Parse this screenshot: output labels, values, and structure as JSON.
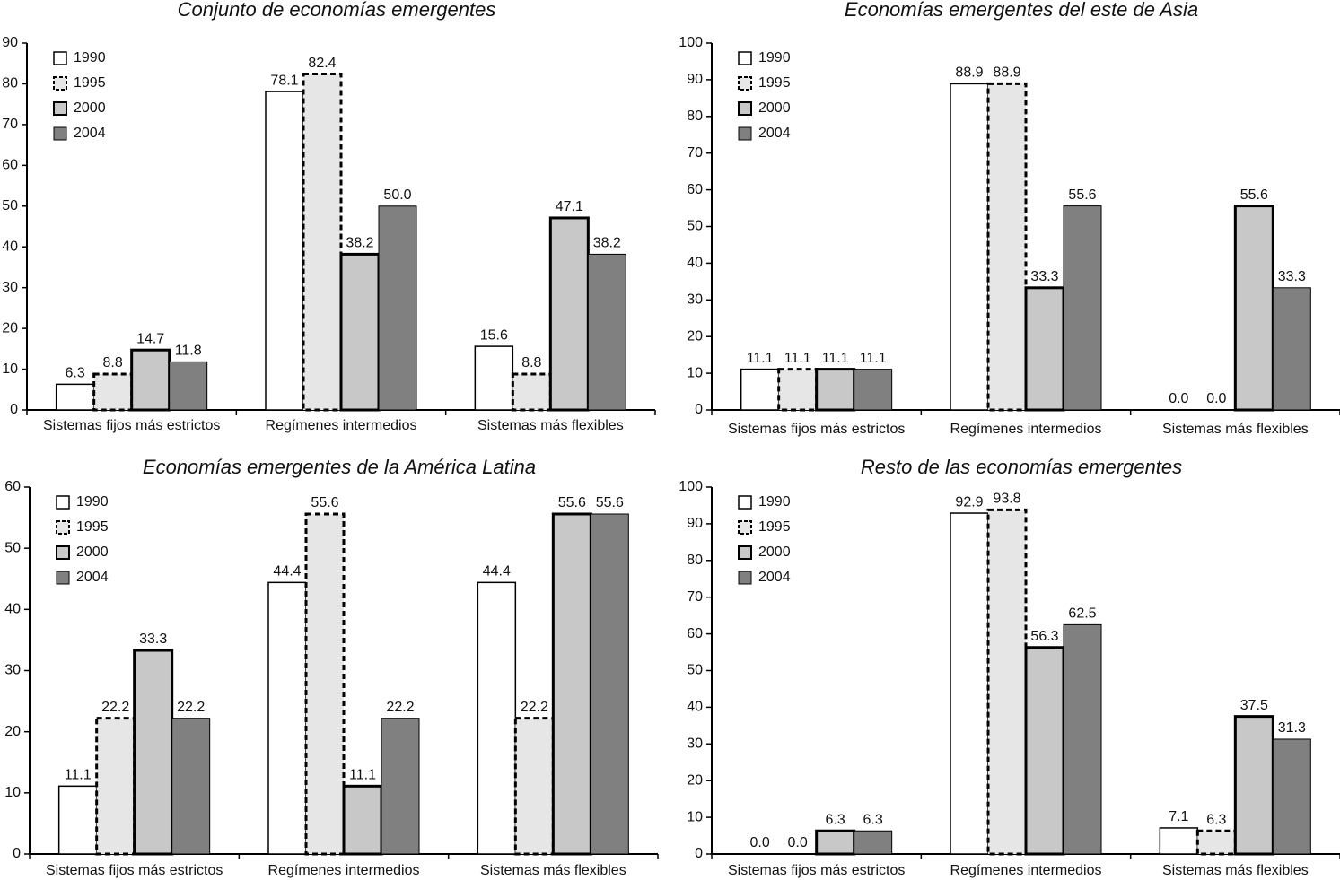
{
  "chart_data": [
    {
      "type": "bar",
      "title": "Conjunto de economías emergentes",
      "categories": [
        "Sistemas fijos más estrictos",
        "Regímenes intermedios",
        "Sistemas más flexibles"
      ],
      "series": [
        {
          "name": "1990",
          "color": "#ffffff",
          "values": [
            6.3,
            78.1,
            15.6
          ],
          "value_labels": [
            "6.3",
            "78.1",
            "15.6"
          ]
        },
        {
          "name": "1995",
          "color": "#e6e6e6",
          "values": [
            8.8,
            82.4,
            8.8
          ],
          "value_labels": [
            "8.8",
            "82.4",
            "8.8"
          ]
        },
        {
          "name": "2000",
          "color": "#c8c8c8",
          "values": [
            14.7,
            38.2,
            47.1
          ],
          "value_labels": [
            "14.7",
            "38.2",
            "47.1"
          ]
        },
        {
          "name": "2004",
          "color": "#808080",
          "values": [
            11.8,
            50,
            38.2
          ],
          "value_labels": [
            "11.8",
            "50.0",
            "38.2"
          ]
        }
      ],
      "ylim": [
        0,
        90
      ],
      "yticks": [
        0,
        10,
        20,
        30,
        40,
        50,
        60,
        70,
        80,
        90
      ]
    },
    {
      "type": "bar",
      "title": "Economías emergentes del este de Asia",
      "categories": [
        "Sistemas fijos más estrictos",
        "Regímenes intermedios",
        "Sistemas más flexibles"
      ],
      "series": [
        {
          "name": "1990",
          "color": "#ffffff",
          "values": [
            11.1,
            88.9,
            0
          ],
          "value_labels": [
            "11.1",
            "88.9",
            "0.0"
          ]
        },
        {
          "name": "1995",
          "color": "#e6e6e6",
          "values": [
            11.1,
            88.9,
            0
          ],
          "value_labels": [
            "11.1",
            "88.9",
            "0.0"
          ]
        },
        {
          "name": "2000",
          "color": "#c8c8c8",
          "values": [
            11.1,
            33.3,
            55.6
          ],
          "value_labels": [
            "11.1",
            "33.3",
            "55.6"
          ]
        },
        {
          "name": "2004",
          "color": "#808080",
          "values": [
            11.1,
            55.6,
            33.3
          ],
          "value_labels": [
            "11.1",
            "55.6",
            "33.3"
          ]
        }
      ],
      "ylim": [
        0,
        100
      ],
      "yticks": [
        0,
        10,
        20,
        30,
        40,
        50,
        60,
        70,
        80,
        90,
        100
      ]
    },
    {
      "type": "bar",
      "title": "Economías emergentes de la América Latina",
      "categories": [
        "Sistemas fijos más estrictos",
        "Regímenes intermedios",
        "Sistemas más flexibles"
      ],
      "series": [
        {
          "name": "1990",
          "color": "#ffffff",
          "values": [
            11.1,
            44.4,
            44.4
          ],
          "value_labels": [
            "11.1",
            "44.4",
            "44.4"
          ]
        },
        {
          "name": "1995",
          "color": "#e6e6e6",
          "values": [
            22.2,
            55.6,
            22.2
          ],
          "value_labels": [
            "22.2",
            "55.6",
            "22.2"
          ]
        },
        {
          "name": "2000",
          "color": "#c8c8c8",
          "values": [
            33.3,
            11.1,
            55.6
          ],
          "value_labels": [
            "33.3",
            "11.1",
            "55.6"
          ]
        },
        {
          "name": "2004",
          "color": "#808080",
          "values": [
            22.2,
            22.2,
            55.6
          ],
          "value_labels": [
            "22.2",
            "22.2",
            "55.6"
          ]
        }
      ],
      "ylim": [
        0,
        60
      ],
      "yticks": [
        0,
        10,
        20,
        30,
        40,
        50,
        60
      ]
    },
    {
      "type": "bar",
      "title": "Resto de las economías emergentes",
      "categories": [
        "Sistemas fijos más estrictos",
        "Regímenes intermedios",
        "Sistemas más flexibles"
      ],
      "series": [
        {
          "name": "1990",
          "color": "#ffffff",
          "values": [
            0,
            92.9,
            7.1
          ],
          "value_labels": [
            "0.0",
            "92.9",
            "7.1"
          ]
        },
        {
          "name": "1995",
          "color": "#e6e6e6",
          "values": [
            0,
            93.8,
            6.3
          ],
          "value_labels": [
            "0.0",
            "93.8",
            "6.3"
          ]
        },
        {
          "name": "2000",
          "color": "#c8c8c8",
          "values": [
            6.3,
            56.3,
            37.5
          ],
          "value_labels": [
            "6.3",
            "56.3",
            "37.5"
          ]
        },
        {
          "name": "2004",
          "color": "#808080",
          "values": [
            6.3,
            62.5,
            31.3
          ],
          "value_labels": [
            "6.3",
            "62.5",
            "31.3"
          ]
        }
      ],
      "ylim": [
        0,
        100
      ],
      "yticks": [
        0,
        10,
        20,
        30,
        40,
        50,
        60,
        70,
        80,
        90,
        100
      ]
    }
  ]
}
